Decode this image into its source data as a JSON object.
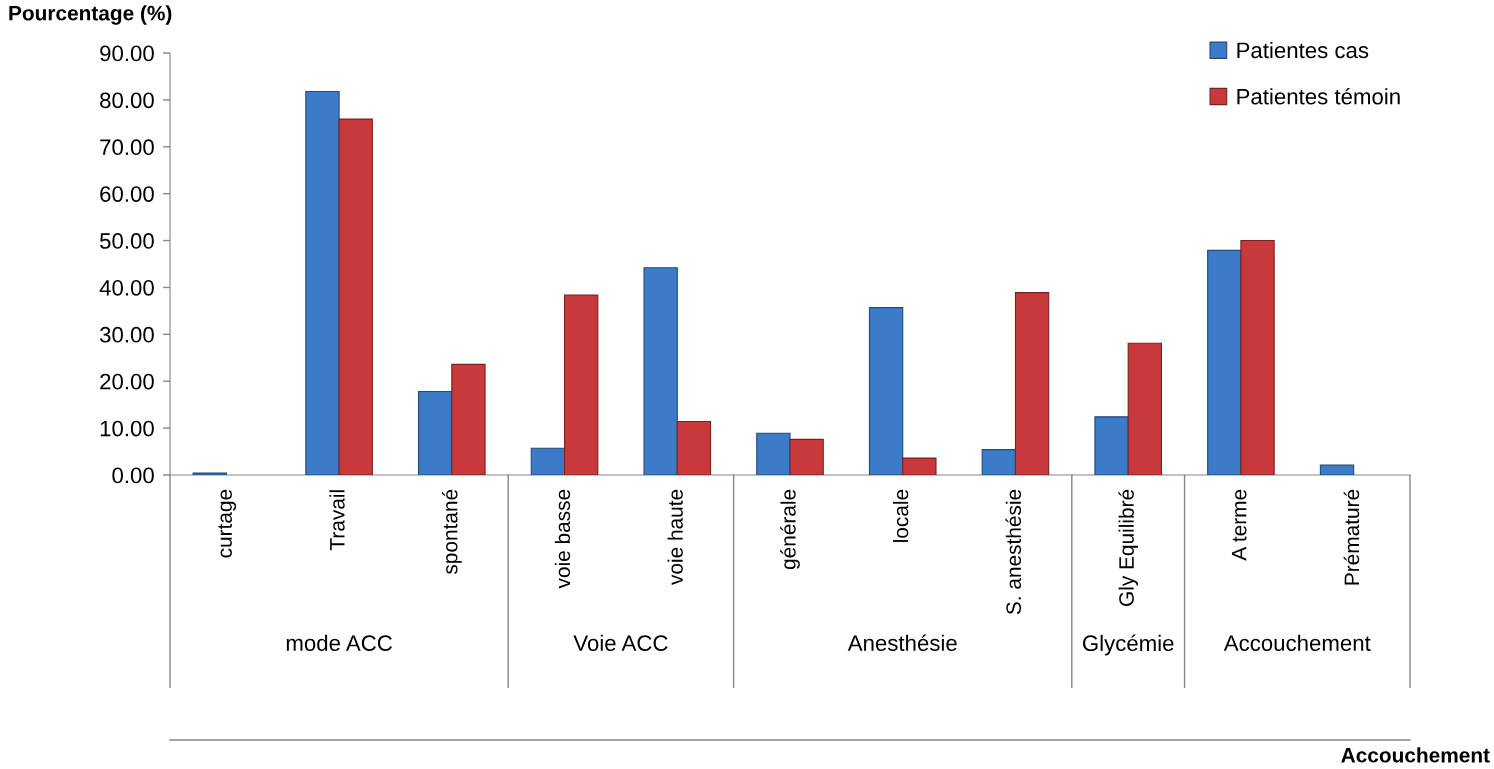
{
  "chart_data": [
    {
      "type": "bar",
      "ylabel": "Pourcentage (%)",
      "xlabel": "mode ACC",
      "categories": [
        "curtage",
        "Travail",
        "spontané"
      ],
      "series": [
        {
          "color": "#3b7bc8",
          "values": [
            0.4,
            81.8,
            17.8
          ]
        },
        {
          "color": "#c8393b",
          "values": [
            null,
            75.9,
            23.6
          ]
        }
      ],
      "ylim": [
        0,
        90
      ],
      "yticks": [
        {
          "value": 0,
          "label": "0.00"
        },
        {
          "value": 10,
          "label": "10.00"
        },
        {
          "value": 20,
          "label": "20.00"
        },
        {
          "value": 30,
          "label": "30.00"
        },
        {
          "value": 40,
          "label": "40.00"
        },
        {
          "value": 50,
          "label": "50.00"
        },
        {
          "value": 60,
          "label": "60.00"
        },
        {
          "value": 70,
          "label": "70.00"
        },
        {
          "value": 80,
          "label": "80.00"
        },
        {
          "value": 90,
          "label": "90.00"
        }
      ]
    },
    {
      "type": "bar",
      "xlabel": "Voie ACC",
      "categories": [
        "voie basse",
        "voie haute"
      ],
      "series": [
        {
          "color": "#3b7bc8",
          "values": [
            5.7,
            44.2
          ]
        },
        {
          "color": "#c8393b",
          "values": [
            38.4,
            11.4
          ]
        }
      ],
      "ylim": [
        0,
        90
      ],
      "tick_labels": "x"
    },
    {
      "type": "bar",
      "xlabel": "Anesthésie",
      "categories": [
        "générale",
        "locale",
        "S. anesthésie"
      ],
      "series": [
        {
          "color": "#3b7bc8",
          "values": [
            8.9,
            35.7,
            5.4
          ]
        },
        {
          "color": "#c8393b",
          "values": [
            7.6,
            3.6,
            38.9
          ]
        }
      ],
      "ylim": [
        0,
        90
      ],
      "tick_labels": "x"
    },
    {
      "type": "bar",
      "xlabel": "Glycémie",
      "categories": [
        "Gly Equilibré"
      ],
      "series": [
        {
          "color": "#3b7bc8",
          "values": [
            12.4
          ]
        },
        {
          "color": "#c8393b",
          "values": [
            28.1
          ]
        }
      ],
      "ylim": [
        0,
        90
      ],
      "tick_labels": "x"
    },
    {
      "type": "bar",
      "xlabel": "Accouchement",
      "categories": [
        "A terme",
        "Prématuré"
      ],
      "series": [
        {
          "name": "Patientes cas",
          "color": "#3b7bc8",
          "values": [
            47.9,
            2.1
          ]
        },
        {
          "name": "Patientes témoin",
          "color": "#c8393b",
          "values": [
            50.0,
            null
          ]
        }
      ],
      "ylim": [
        0,
        90
      ],
      "tick_labels": "x",
      "legend": "top right",
      "annotations": [
        "Accouchement"
      ]
    }
  ]
}
